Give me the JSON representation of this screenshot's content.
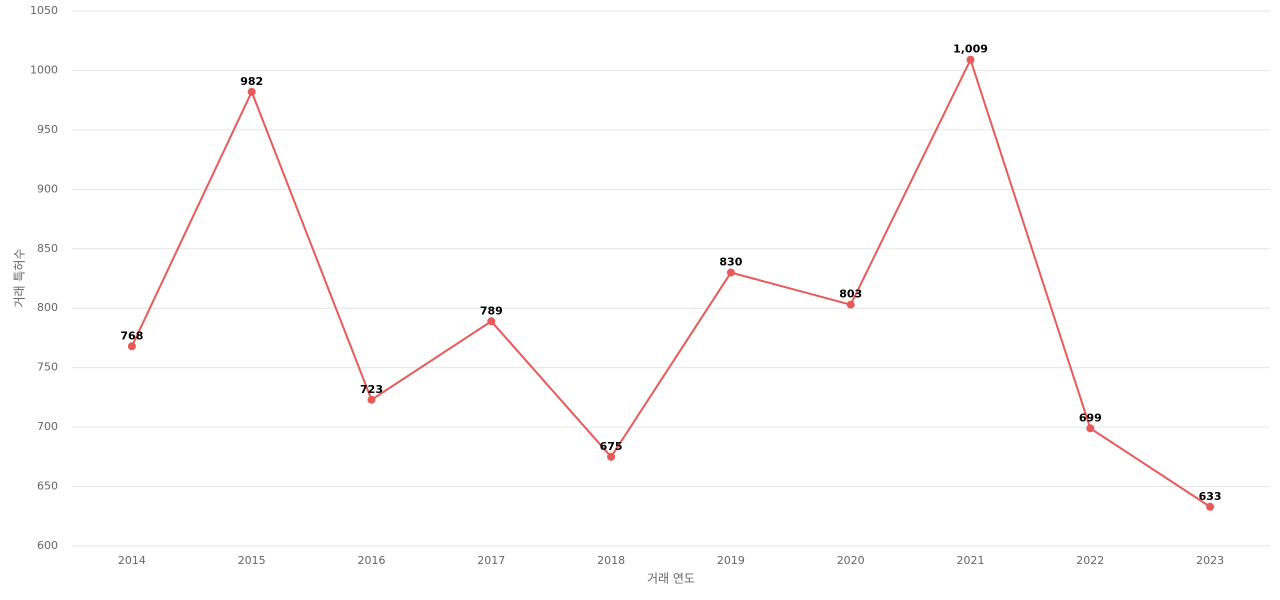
{
  "chart_data": {
    "type": "line",
    "x_label": "거래 연도",
    "y_label": "거래 특허수",
    "categories": [
      "2014",
      "2015",
      "2016",
      "2017",
      "2018",
      "2019",
      "2020",
      "2021",
      "2022",
      "2023"
    ],
    "values": [
      768,
      982,
      723,
      789,
      675,
      830,
      803,
      1009,
      699,
      633
    ],
    "value_labels": [
      "768",
      "982",
      "723",
      "789",
      "675",
      "830",
      "803",
      "1,009",
      "699",
      "633"
    ],
    "color": "#e85a5a",
    "ylim": [
      600,
      1050
    ],
    "yticks": [
      600,
      650,
      700,
      750,
      800,
      850,
      900,
      950,
      1000,
      1050
    ],
    "grid": true
  }
}
